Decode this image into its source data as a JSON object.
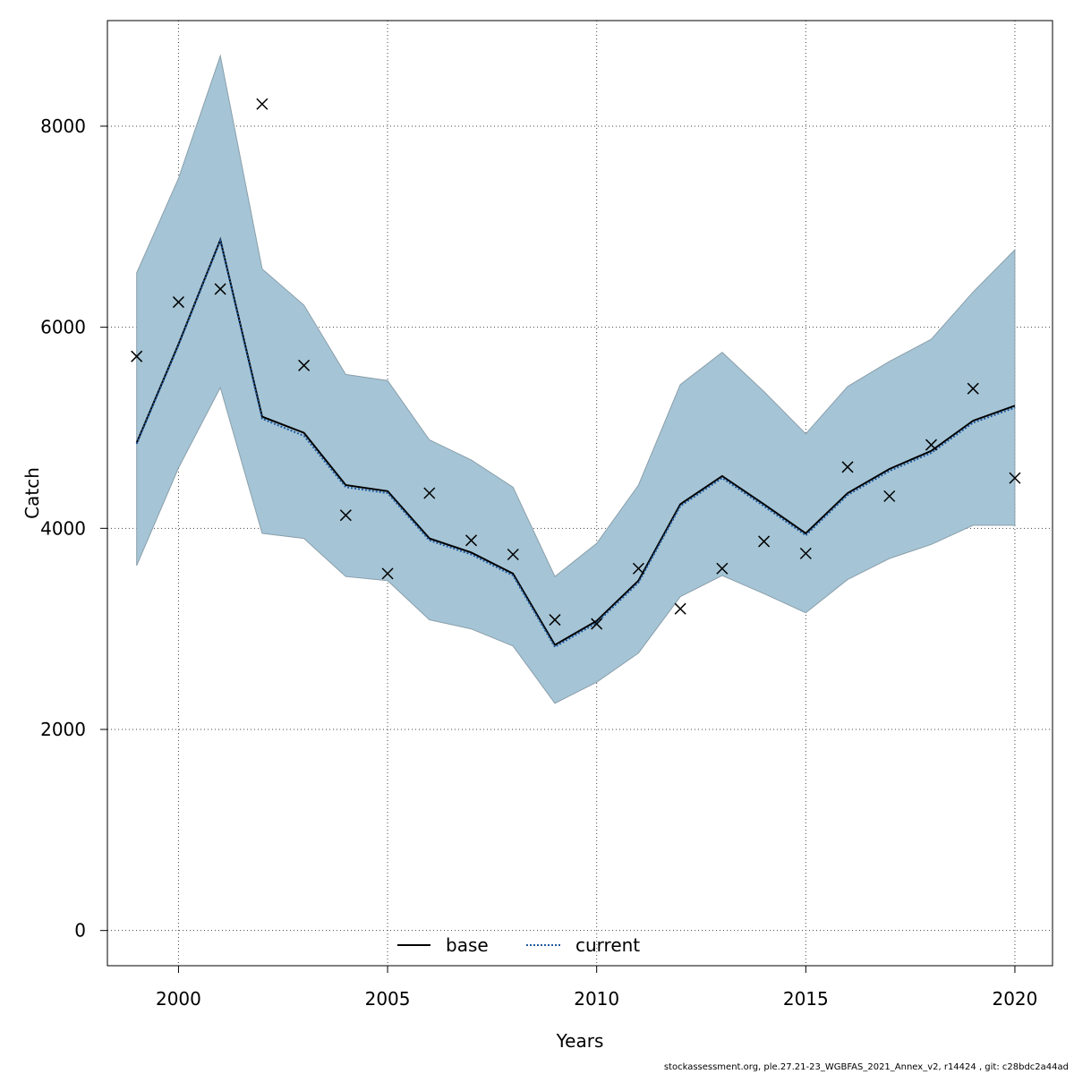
{
  "chart_data": {
    "type": "line",
    "title": "",
    "xlabel": "Years",
    "ylabel": "Catch",
    "xlim": [
      1998.3,
      2020.9
    ],
    "ylim": [
      -350,
      9050
    ],
    "x_ticks": [
      2000,
      2005,
      2010,
      2015,
      2020
    ],
    "y_ticks": [
      0,
      2000,
      4000,
      6000,
      8000
    ],
    "grid": true,
    "years": [
      1999,
      2000,
      2001,
      2002,
      2003,
      2004,
      2005,
      2006,
      2007,
      2008,
      2009,
      2010,
      2011,
      2012,
      2013,
      2014,
      2015,
      2016,
      2017,
      2018,
      2019,
      2020
    ],
    "series": [
      {
        "name": "base",
        "style": "solid",
        "color": "#000000",
        "values": [
          4850,
          5830,
          6870,
          5110,
          4950,
          4430,
          4370,
          3900,
          3760,
          3550,
          2840,
          3080,
          3480,
          4240,
          4520,
          4240,
          3950,
          4350,
          4590,
          4770,
          5070,
          5220
        ]
      },
      {
        "name": "current",
        "style": "dotted",
        "color": "#1f5aa0",
        "values": [
          4840,
          5820,
          6860,
          5090,
          4920,
          4410,
          4350,
          3880,
          3740,
          3530,
          2820,
          3060,
          3460,
          4220,
          4500,
          4220,
          3930,
          4330,
          4570,
          4750,
          5050,
          5200
        ]
      }
    ],
    "confidence_band": {
      "color": "#a5c5d6",
      "upper": [
        6540,
        7480,
        8700,
        6580,
        6220,
        5530,
        5470,
        4880,
        4680,
        4410,
        3520,
        3850,
        4430,
        5430,
        5750,
        5360,
        4940,
        5410,
        5660,
        5880,
        6350,
        6770
      ],
      "lower": [
        3630,
        4600,
        5400,
        3950,
        3900,
        3520,
        3480,
        3090,
        3000,
        2830,
        2260,
        2470,
        2760,
        3320,
        3530,
        3350,
        3160,
        3490,
        3700,
        3840,
        4030,
        4030
      ]
    },
    "observations": {
      "marker": "x",
      "values": [
        5710,
        6250,
        6380,
        8220,
        5620,
        4130,
        3550,
        4350,
        3880,
        3740,
        3090,
        3050,
        3600,
        3200,
        3600,
        3870,
        3750,
        4610,
        4320,
        4830,
        5390,
        4500
      ]
    },
    "legend": {
      "position": "bottom-center",
      "entries": [
        "base",
        "current"
      ]
    }
  },
  "footer_text": "stockassessment.org, ple.27.21-23_WGBFAS_2021_Annex_v2, r14424 , git: c28bdc2a44ad"
}
